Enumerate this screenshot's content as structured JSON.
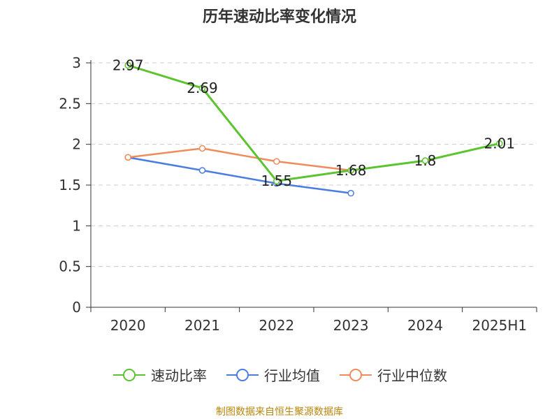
{
  "title": "历年速动比率变化情况",
  "footer": "制图数据来自恒生聚源数据库",
  "chart_data": {
    "type": "line",
    "categories": [
      "2020",
      "2021",
      "2022",
      "2023",
      "2024",
      "2025H1"
    ],
    "ylim": [
      0,
      3
    ],
    "yticks": [
      "0",
      "0.5",
      "1",
      "1.5",
      "2",
      "2.5",
      "3"
    ],
    "grid": true,
    "legend_position": "bottom",
    "series": [
      {
        "name": "速动比率",
        "color": "#5cc42e",
        "values": [
          2.97,
          2.69,
          1.55,
          1.68,
          1.8,
          2.01
        ],
        "labels": [
          "2.97",
          "2.69",
          "1.55",
          "1.68",
          "1.8",
          "2.01"
        ],
        "width": 3
      },
      {
        "name": "行业均值",
        "color": "#4a7de0",
        "values": [
          1.84,
          1.68,
          1.52,
          1.4,
          null,
          null
        ],
        "width": 2.5
      },
      {
        "name": "行业中位数",
        "color": "#f08c5a",
        "values": [
          1.84,
          1.95,
          1.79,
          1.68,
          null,
          null
        ],
        "width": 2.5
      }
    ]
  }
}
